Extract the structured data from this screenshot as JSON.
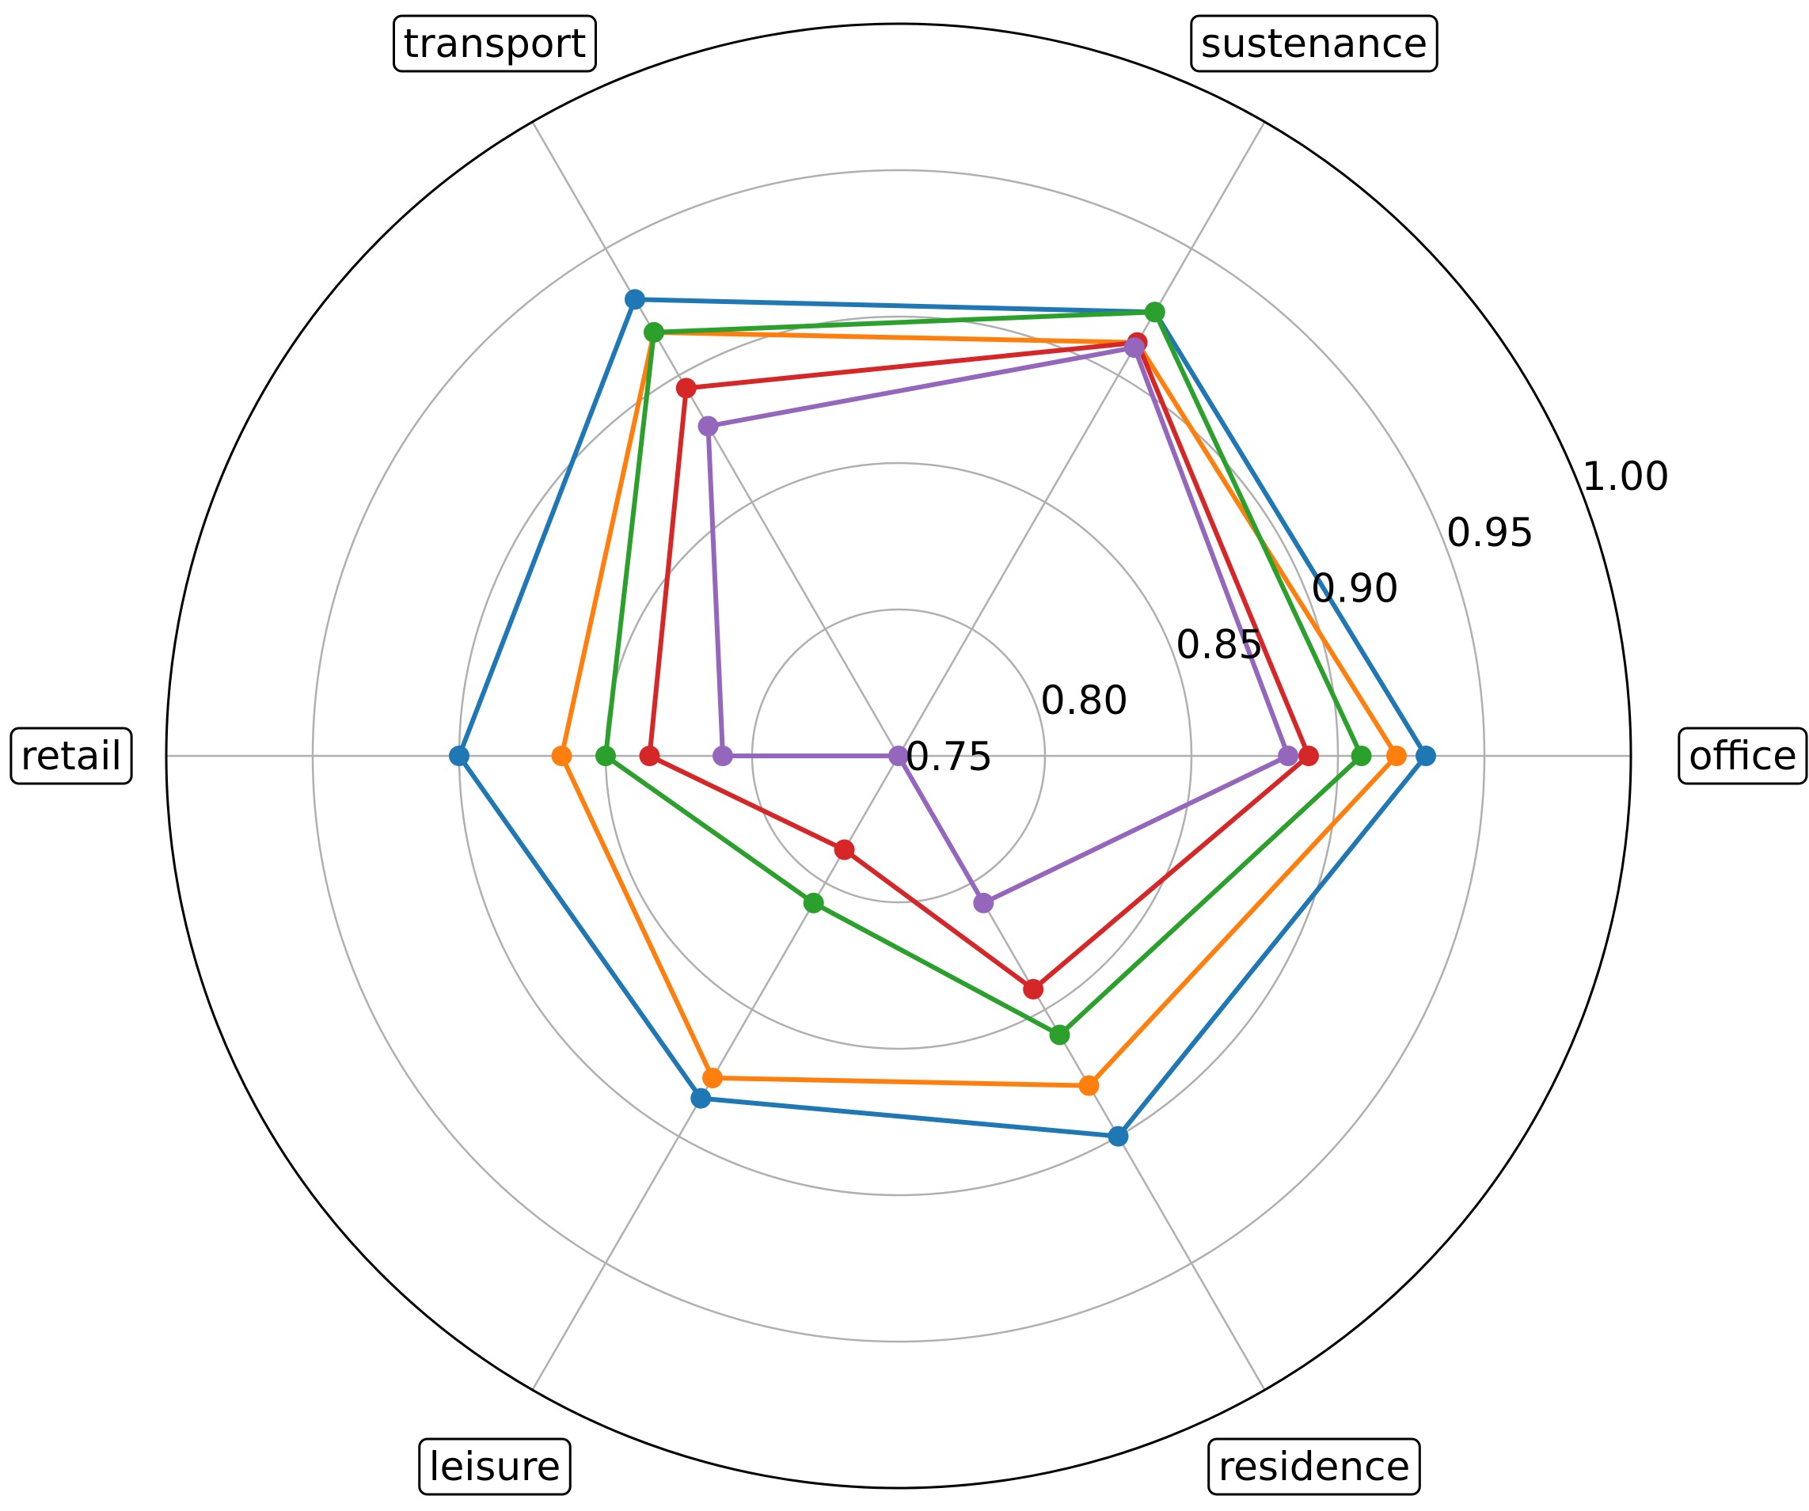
{
  "chart_data": {
    "type": "radar",
    "categories": [
      "office",
      "sustenance",
      "transport",
      "retail",
      "leisure",
      "residence"
    ],
    "rlim": [
      0.75,
      1.0
    ],
    "r_ticks": [
      "0.75",
      "0.80",
      "0.85",
      "0.90",
      "0.95",
      "1.00"
    ],
    "r_tick_values": [
      0.75,
      0.8,
      0.85,
      0.9,
      0.95,
      1.0
    ],
    "grid": true,
    "series": [
      {
        "color": "#1f77b4",
        "values": [
          0.93,
          0.925,
          0.93,
          0.9,
          0.885,
          0.9
        ]
      },
      {
        "color": "#ff7f0e",
        "values": [
          0.92,
          0.913,
          0.917,
          0.865,
          0.877,
          0.88
        ]
      },
      {
        "color": "#2ca02c",
        "values": [
          0.908,
          0.925,
          0.917,
          0.85,
          0.808,
          0.86
        ]
      },
      {
        "color": "#d62728",
        "values": [
          0.89,
          0.913,
          0.895,
          0.835,
          0.787,
          0.842
        ]
      },
      {
        "color": "#9467bd",
        "values": [
          0.883,
          0.911,
          0.88,
          0.81,
          0.75,
          0.808
        ]
      }
    ]
  }
}
